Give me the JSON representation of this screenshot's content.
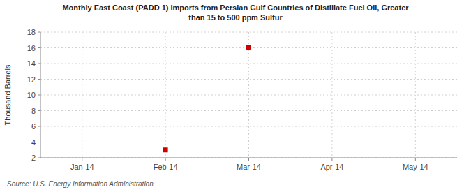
{
  "chart_data": {
    "type": "scatter",
    "title": "Monthly East Coast (PADD 1) Imports from Persian Gulf Countries of Distillate Fuel Oil, Greater\nthan 15 to 500 ppm Sulfur",
    "y_label": "Thousand Barrels",
    "source": "Source: U.S. Energy Information Administration",
    "categories": [
      "Jan-14",
      "Feb-14",
      "Mar-14",
      "Apr-14",
      "May-14"
    ],
    "values": [
      null,
      3,
      16,
      null,
      null
    ],
    "color": "#cc0000",
    "marker": "square",
    "line_style": "none",
    "ylim": [
      2,
      18
    ],
    "yticks": [
      2,
      4,
      6,
      8,
      10,
      12,
      14,
      16,
      18
    ],
    "grid": true
  }
}
